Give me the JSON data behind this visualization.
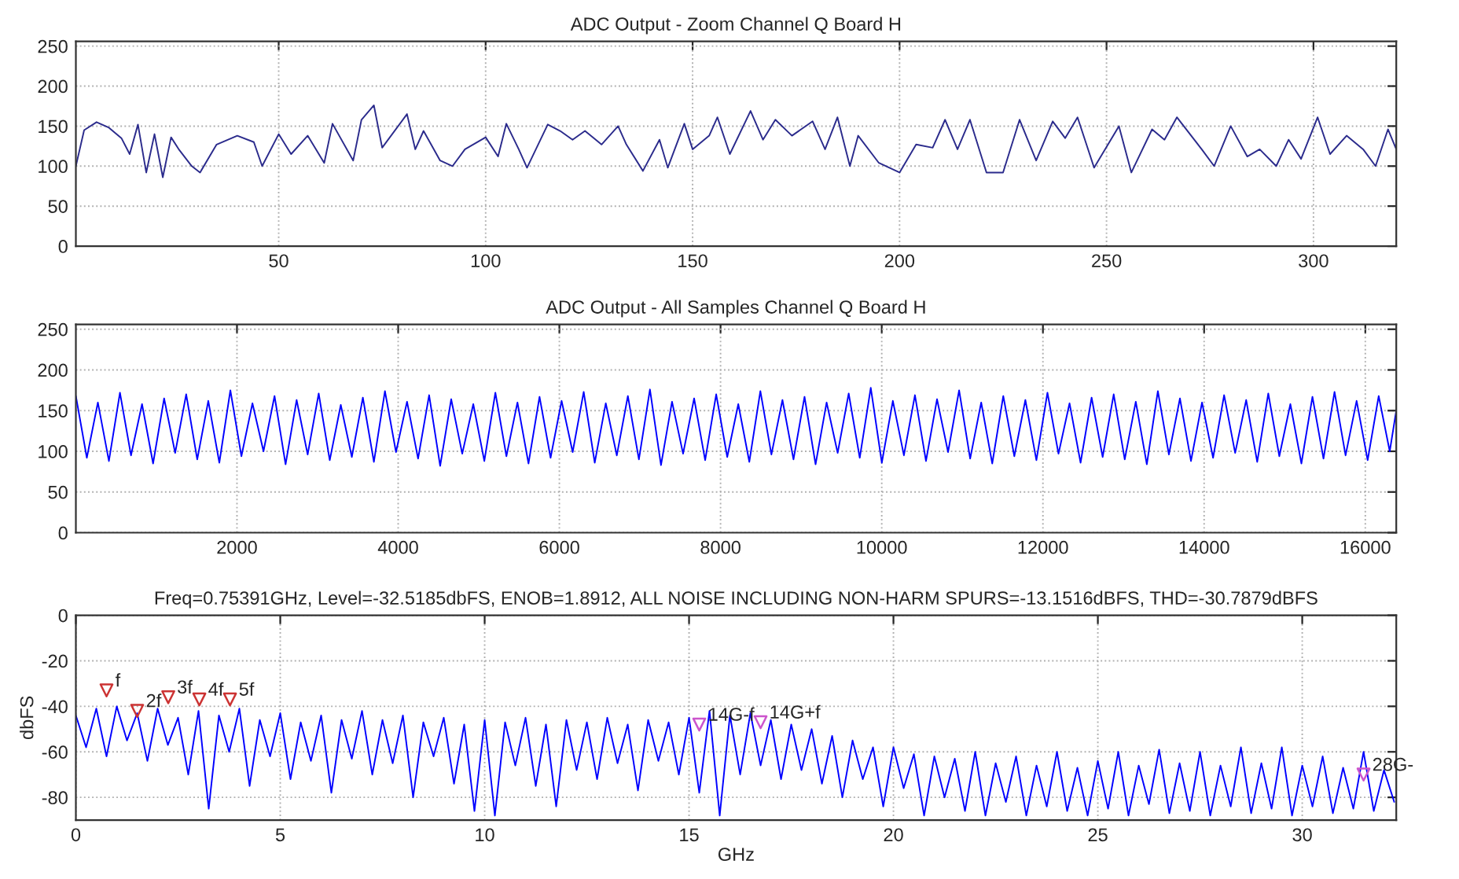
{
  "chart_data": [
    {
      "type": "line",
      "title": "ADC Output - Zoom Channel Q Board H",
      "xlim": [
        1,
        320
      ],
      "xticks": [
        50,
        100,
        150,
        200,
        250,
        300
      ],
      "ylim": [
        0,
        256
      ],
      "yticks": [
        0,
        50,
        100,
        150,
        200,
        250
      ],
      "grid": true,
      "series": [
        {
          "color": "#2b2b8c",
          "x": [
            1,
            3,
            6,
            9,
            12,
            14,
            16,
            18,
            20,
            22,
            24,
            26,
            29,
            31,
            35,
            40,
            44,
            46,
            50,
            53,
            57,
            61,
            63,
            68,
            70,
            73,
            75,
            81,
            83,
            85,
            89,
            92,
            95,
            100,
            103,
            105,
            108,
            110,
            115,
            118,
            121,
            124,
            128,
            132,
            134,
            138,
            142,
            144,
            148,
            150,
            154,
            156,
            159,
            164,
            167,
            170,
            174,
            179,
            182,
            185,
            188,
            190,
            195,
            200,
            204,
            208,
            211,
            214,
            217,
            221,
            225,
            229,
            233,
            237,
            240,
            243,
            247,
            253,
            256,
            261,
            264,
            267,
            273,
            276,
            280,
            284,
            287,
            291,
            294,
            297,
            301,
            304,
            308,
            312,
            315,
            318,
            320
          ],
          "values": [
            100,
            145,
            155,
            148,
            135,
            115,
            152,
            92,
            140,
            86,
            136,
            120,
            100,
            92,
            127,
            138,
            130,
            100,
            140,
            115,
            138,
            104,
            153,
            107,
            158,
            176,
            123,
            165,
            121,
            144,
            107,
            100,
            121,
            136,
            112,
            153,
            121,
            98,
            152,
            144,
            133,
            144,
            127,
            150,
            127,
            94,
            133,
            98,
            153,
            121,
            138,
            161,
            115,
            169,
            133,
            158,
            138,
            156,
            121,
            161,
            100,
            138,
            104,
            92,
            127,
            123,
            158,
            121,
            158,
            92,
            92,
            158,
            107,
            156,
            135,
            161,
            98,
            150,
            92,
            146,
            133,
            161,
            121,
            100,
            150,
            112,
            121,
            100,
            133,
            109,
            161,
            115,
            138,
            121,
            100,
            146,
            121
          ]
        }
      ]
    },
    {
      "type": "line",
      "title": "ADC Output - All Samples Channel Q Board H",
      "xlim": [
        1,
        16384
      ],
      "xticks": [
        2000,
        4000,
        6000,
        8000,
        10000,
        12000,
        14000,
        16000
      ],
      "ylim": [
        0,
        256
      ],
      "yticks": [
        0,
        50,
        100,
        150,
        200,
        250
      ],
      "grid": true,
      "series": [
        {
          "color": "#0000ff",
          "x": [
            1,
            137,
            274,
            411,
            548,
            685,
            822,
            959,
            1096,
            1233,
            1370,
            1507,
            1644,
            1781,
            1918,
            2055,
            2192,
            2329,
            2466,
            2603,
            2740,
            2877,
            3014,
            3151,
            3288,
            3425,
            3562,
            3699,
            3836,
            3973,
            4110,
            4247,
            4384,
            4521,
            4658,
            4795,
            4932,
            5069,
            5206,
            5343,
            5480,
            5617,
            5754,
            5891,
            6028,
            6165,
            6302,
            6439,
            6576,
            6713,
            6850,
            6987,
            7124,
            7261,
            7398,
            7535,
            7672,
            7809,
            7946,
            8083,
            8220,
            8357,
            8494,
            8631,
            8768,
            8905,
            9042,
            9179,
            9316,
            9453,
            9590,
            9727,
            9864,
            10001,
            10138,
            10275,
            10412,
            10549,
            10686,
            10823,
            10960,
            11097,
            11234,
            11371,
            11508,
            11645,
            11782,
            11919,
            12056,
            12193,
            12330,
            12467,
            12604,
            12741,
            12878,
            13015,
            13152,
            13289,
            13426,
            13563,
            13700,
            13837,
            13974,
            14111,
            14248,
            14385,
            14522,
            14659,
            14796,
            14933,
            15070,
            15207,
            15344,
            15481,
            15618,
            15755,
            15892,
            16029,
            16166,
            16303,
            16384
          ],
          "values": [
            168,
            92,
            160,
            88,
            172,
            95,
            158,
            85,
            165,
            98,
            170,
            90,
            162,
            86,
            175,
            94,
            159,
            100,
            168,
            84,
            163,
            96,
            171,
            89,
            157,
            93,
            166,
            87,
            174,
            99,
            161,
            91,
            169,
            82,
            164,
            97,
            158,
            88,
            172,
            94,
            160,
            85,
            167,
            92,
            162,
            99,
            173,
            86,
            159,
            95,
            168,
            90,
            176,
            83,
            161,
            97,
            165,
            89,
            170,
            93,
            158,
            87,
            174,
            96,
            163,
            90,
            167,
            84,
            160,
            98,
            171,
            92,
            178,
            86,
            162,
            95,
            169,
            88,
            164,
            99,
            175,
            91,
            160,
            85,
            168,
            94,
            163,
            89,
            172,
            97,
            159,
            86,
            166,
            93,
            170,
            90,
            161,
            84,
            174,
            96,
            165,
            88,
            160,
            92,
            169,
            98,
            163,
            87,
            171,
            94,
            158,
            85,
            167,
            91,
            173,
            95,
            162,
            89,
            168,
            100,
            150
          ]
        }
      ]
    },
    {
      "type": "line",
      "title": "Freq=0.75391GHz, Level=-32.5185dbFS, ENOB=1.8912, ALL NOISE INCLUDING NON-HARM SPURS=-13.1516dBFS, THD=-30.7879dBFS",
      "xlabel": "GHz",
      "ylabel": "dbFS",
      "xlim": [
        0,
        32.3
      ],
      "xticks": [
        0,
        5,
        10,
        15,
        20,
        25,
        30
      ],
      "ylim": [
        -90,
        0
      ],
      "yticks": [
        -80,
        -60,
        -40,
        -20,
        0
      ],
      "grid": true,
      "series": [
        {
          "color": "#0000ff",
          "x": [
            0,
            0.25,
            0.5,
            0.75,
            1,
            1.25,
            1.5,
            1.75,
            2,
            2.25,
            2.5,
            2.75,
            3,
            3.25,
            3.5,
            3.75,
            4,
            4.25,
            4.5,
            4.75,
            5,
            5.25,
            5.5,
            5.75,
            6,
            6.25,
            6.5,
            6.75,
            7,
            7.25,
            7.5,
            7.75,
            8,
            8.25,
            8.5,
            8.75,
            9,
            9.25,
            9.5,
            9.75,
            10,
            10.25,
            10.5,
            10.75,
            11,
            11.25,
            11.5,
            11.75,
            12,
            12.25,
            12.5,
            12.75,
            13,
            13.25,
            13.5,
            13.75,
            14,
            14.25,
            14.5,
            14.75,
            15,
            15.25,
            15.5,
            15.75,
            16,
            16.25,
            16.5,
            16.75,
            17,
            17.25,
            17.5,
            17.75,
            18,
            18.25,
            18.5,
            18.75,
            19,
            19.25,
            19.5,
            19.75,
            20,
            20.25,
            20.5,
            20.75,
            21,
            21.25,
            21.5,
            21.75,
            22,
            22.25,
            22.5,
            22.75,
            23,
            23.25,
            23.5,
            23.75,
            24,
            24.25,
            24.5,
            24.75,
            25,
            25.25,
            25.5,
            25.75,
            26,
            26.25,
            26.5,
            26.75,
            27,
            27.25,
            27.5,
            27.75,
            28,
            28.25,
            28.5,
            28.75,
            29,
            29.25,
            29.5,
            29.75,
            30,
            30.25,
            30.5,
            30.75,
            31,
            31.25,
            31.5,
            31.75,
            32,
            32.25
          ],
          "values": [
            -44,
            -58,
            -41,
            -62,
            -40,
            -55,
            -43,
            -64,
            -41,
            -57,
            -45,
            -70,
            -42,
            -85,
            -44,
            -60,
            -41,
            -75,
            -46,
            -62,
            -43,
            -72,
            -47,
            -64,
            -44,
            -78,
            -46,
            -63,
            -42,
            -70,
            -46,
            -65,
            -44,
            -80,
            -47,
            -62,
            -45,
            -74,
            -48,
            -86,
            -46,
            -88,
            -47,
            -66,
            -45,
            -75,
            -48,
            -84,
            -46,
            -68,
            -47,
            -72,
            -45,
            -65,
            -48,
            -77,
            -46,
            -64,
            -47,
            -70,
            -45,
            -78,
            -42,
            -88,
            -44,
            -70,
            -43,
            -66,
            -46,
            -72,
            -48,
            -68,
            -50,
            -74,
            -53,
            -80,
            -55,
            -72,
            -58,
            -84,
            -58,
            -76,
            -61,
            -88,
            -62,
            -80,
            -63,
            -86,
            -60,
            -88,
            -65,
            -82,
            -62,
            -88,
            -66,
            -84,
            -60,
            -86,
            -67,
            -88,
            -64,
            -85,
            -60,
            -88,
            -66,
            -83,
            -59,
            -87,
            -65,
            -86,
            -60,
            -88,
            -66,
            -84,
            -58,
            -87,
            -65,
            -85,
            -58,
            -88,
            -66,
            -84,
            -62,
            -87,
            -67,
            -85,
            -60,
            -86,
            -68,
            -82
          ]
        },
        {
          "type": "scatter",
          "marker": "triangle",
          "x": [
            0.75,
            1.5,
            2.26,
            3.02,
            3.77,
            15.25,
            16.75,
            31.5
          ],
          "values": [
            -33,
            -42,
            -36,
            -37,
            -37,
            -48,
            -47,
            -70
          ],
          "colors": [
            "#cc3333",
            "#cc3333",
            "#cc3333",
            "#cc3333",
            "#cc3333",
            "#cc55cc",
            "#cc55cc",
            "#cc55cc"
          ]
        }
      ],
      "annotations": [
        {
          "text": "f",
          "x": 0.75,
          "y": -33
        },
        {
          "text": "2f",
          "x": 1.5,
          "y": -42
        },
        {
          "text": "3f",
          "x": 2.26,
          "y": -36
        },
        {
          "text": "4f",
          "x": 3.02,
          "y": -37
        },
        {
          "text": "5f",
          "x": 3.77,
          "y": -37
        },
        {
          "text": "14G-f",
          "x": 15.25,
          "y": -48
        },
        {
          "text": "14G+f",
          "x": 16.75,
          "y": -47
        },
        {
          "text": "28G-",
          "x": 31.5,
          "y": -70
        }
      ]
    }
  ]
}
